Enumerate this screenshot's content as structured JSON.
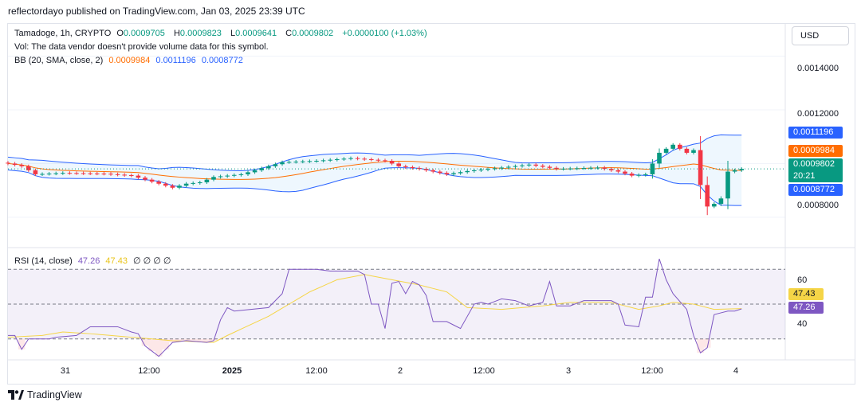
{
  "publisher": "reflectordayo published on TradingView.com, Jan 03, 2025 23:39 UTC",
  "currency_button": "USD",
  "footer_logo_text": "TradingView",
  "legend": {
    "symbol": "Tamadoge, 1h, CRYPTO",
    "o_label": "O",
    "o_value": "0.0009705",
    "h_label": "H",
    "h_value": "0.0009823",
    "l_label": "L",
    "l_value": "0.0009641",
    "c_label": "C",
    "c_value": "0.0009802",
    "change": "+0.0000100 (+1.03%)",
    "vol_note": "Vol: The data vendor doesn't provide volume data for this symbol.",
    "bb_label": "BB (20, SMA, close, 2)",
    "bb_basis": "0.0009984",
    "bb_upper": "0.0011196",
    "bb_lower": "0.0008772",
    "rsi_label": "RSI (14, close)",
    "rsi_value": "47.26",
    "rsi_ma": "47.43",
    "rsi_extra": "∅ ∅ ∅ ∅"
  },
  "colors": {
    "up": "#089981",
    "down": "#f23645",
    "bb_basis": "#ff6d00",
    "bb_band": "#2962ff",
    "rsi": "#7e57c2",
    "rsi_ma": "#f5d547"
  },
  "chart_data": [
    {
      "type": "candlestick",
      "title": "Tamadoge, 1h, CRYPTO",
      "price_axis_ticks": [
        "0.0014000",
        "0.0012000",
        "0.0008000"
      ],
      "ylim": [
        0.00069,
        0.00152
      ],
      "x_labels": [
        "31",
        "12:00",
        "2025",
        "12:00",
        "2",
        "12:00",
        "3",
        "12:00",
        "4"
      ],
      "bars": 108,
      "badges": {
        "bb_upper": "0.0011196",
        "bb_basis": "0.0009984",
        "last_price": "0.0009802",
        "countdown": "20:21",
        "bb_lower": "0.0008772"
      },
      "anchors": [
        [
          0,
          0.001
        ],
        [
          2,
          0.00099
        ],
        [
          4,
          0.00096
        ],
        [
          8,
          0.000965
        ],
        [
          14,
          0.000962
        ],
        [
          18,
          0.000955
        ],
        [
          22,
          0.000925
        ],
        [
          24,
          0.00091
        ],
        [
          26,
          0.000925
        ],
        [
          28,
          0.00093
        ],
        [
          30,
          0.00095
        ],
        [
          34,
          0.00096
        ],
        [
          40,
          0.001005
        ],
        [
          45,
          0.00101
        ],
        [
          50,
          0.00102
        ],
        [
          55,
          0.00101
        ],
        [
          57,
          0.00099
        ],
        [
          60,
          0.00098
        ],
        [
          64,
          0.00096
        ],
        [
          67,
          0.000972
        ],
        [
          72,
          0.000985
        ],
        [
          76,
          0.000996
        ],
        [
          80,
          0.00098
        ],
        [
          86,
          0.000985
        ],
        [
          89,
          0.00097
        ],
        [
          91,
          0.000955
        ],
        [
          93,
          0.00096
        ],
        [
          95,
          0.00104
        ],
        [
          97,
          0.00107
        ],
        [
          99,
          0.00104
        ],
        [
          100,
          0.00105
        ],
        [
          101,
          0.00092
        ],
        [
          102,
          0.00084
        ],
        [
          103,
          0.00085
        ],
        [
          104,
          0.00087
        ],
        [
          105,
          0.00097
        ],
        [
          106,
          0.000975
        ],
        [
          107,
          0.00098
        ]
      ]
    },
    {
      "type": "line",
      "title": "RSI (14, close)",
      "y_ticks": [
        60.0,
        40.0
      ],
      "ylim": [
        18,
        82
      ],
      "levels": [
        70,
        50,
        30
      ],
      "badges": {
        "rsi_ma": "47.43",
        "rsi": "47.26"
      },
      "rsi_anchors": [
        [
          0,
          32
        ],
        [
          1,
          32
        ],
        [
          2,
          24
        ],
        [
          3,
          30
        ],
        [
          6,
          30
        ],
        [
          7,
          31
        ],
        [
          10,
          32
        ],
        [
          12,
          37
        ],
        [
          16,
          37
        ],
        [
          18,
          34
        ],
        [
          19,
          33
        ],
        [
          20,
          26
        ],
        [
          22,
          20
        ],
        [
          24,
          28
        ],
        [
          26,
          29
        ],
        [
          29,
          28
        ],
        [
          30,
          29
        ],
        [
          31,
          41
        ],
        [
          32,
          48
        ],
        [
          33,
          46
        ],
        [
          38,
          48
        ],
        [
          40,
          56
        ],
        [
          41,
          70
        ],
        [
          42,
          70
        ],
        [
          45,
          70
        ],
        [
          47,
          69
        ],
        [
          51,
          69
        ],
        [
          52,
          67
        ],
        [
          53,
          50
        ],
        [
          54,
          50
        ],
        [
          55,
          36
        ],
        [
          56,
          62
        ],
        [
          57,
          63
        ],
        [
          58,
          56
        ],
        [
          59,
          63
        ],
        [
          60,
          61
        ],
        [
          61,
          55
        ],
        [
          62,
          40
        ],
        [
          64,
          40
        ],
        [
          65,
          38
        ],
        [
          66,
          36
        ],
        [
          68,
          50
        ],
        [
          69,
          51
        ],
        [
          70,
          50
        ],
        [
          72,
          53
        ],
        [
          74,
          52
        ],
        [
          76,
          49
        ],
        [
          78,
          51
        ],
        [
          79,
          63
        ],
        [
          80,
          49
        ],
        [
          82,
          49
        ],
        [
          84,
          52
        ],
        [
          86,
          52
        ],
        [
          88,
          52
        ],
        [
          89,
          50
        ],
        [
          90,
          38
        ],
        [
          92,
          37
        ],
        [
          93,
          54
        ],
        [
          94,
          54
        ],
        [
          95,
          76
        ],
        [
          96,
          64
        ],
        [
          97,
          56
        ],
        [
          99,
          47
        ],
        [
          100,
          32
        ],
        [
          101,
          22
        ],
        [
          102,
          25
        ],
        [
          103,
          44
        ],
        [
          105,
          46
        ],
        [
          106,
          46
        ],
        [
          107,
          47.26
        ]
      ],
      "ma_anchors": [
        [
          0,
          31
        ],
        [
          5,
          32
        ],
        [
          8,
          34
        ],
        [
          12,
          33
        ],
        [
          18,
          31
        ],
        [
          24,
          29
        ],
        [
          30,
          28
        ],
        [
          32,
          32
        ],
        [
          38,
          43
        ],
        [
          44,
          57
        ],
        [
          48,
          64
        ],
        [
          52,
          67
        ],
        [
          56,
          64
        ],
        [
          60,
          61
        ],
        [
          64,
          57
        ],
        [
          67,
          48
        ],
        [
          72,
          47
        ],
        [
          78,
          49
        ],
        [
          82,
          51
        ],
        [
          88,
          51
        ],
        [
          92,
          47
        ],
        [
          95,
          49
        ],
        [
          97,
          51
        ],
        [
          100,
          50
        ],
        [
          103,
          47
        ],
        [
          107,
          47.43
        ]
      ]
    }
  ]
}
